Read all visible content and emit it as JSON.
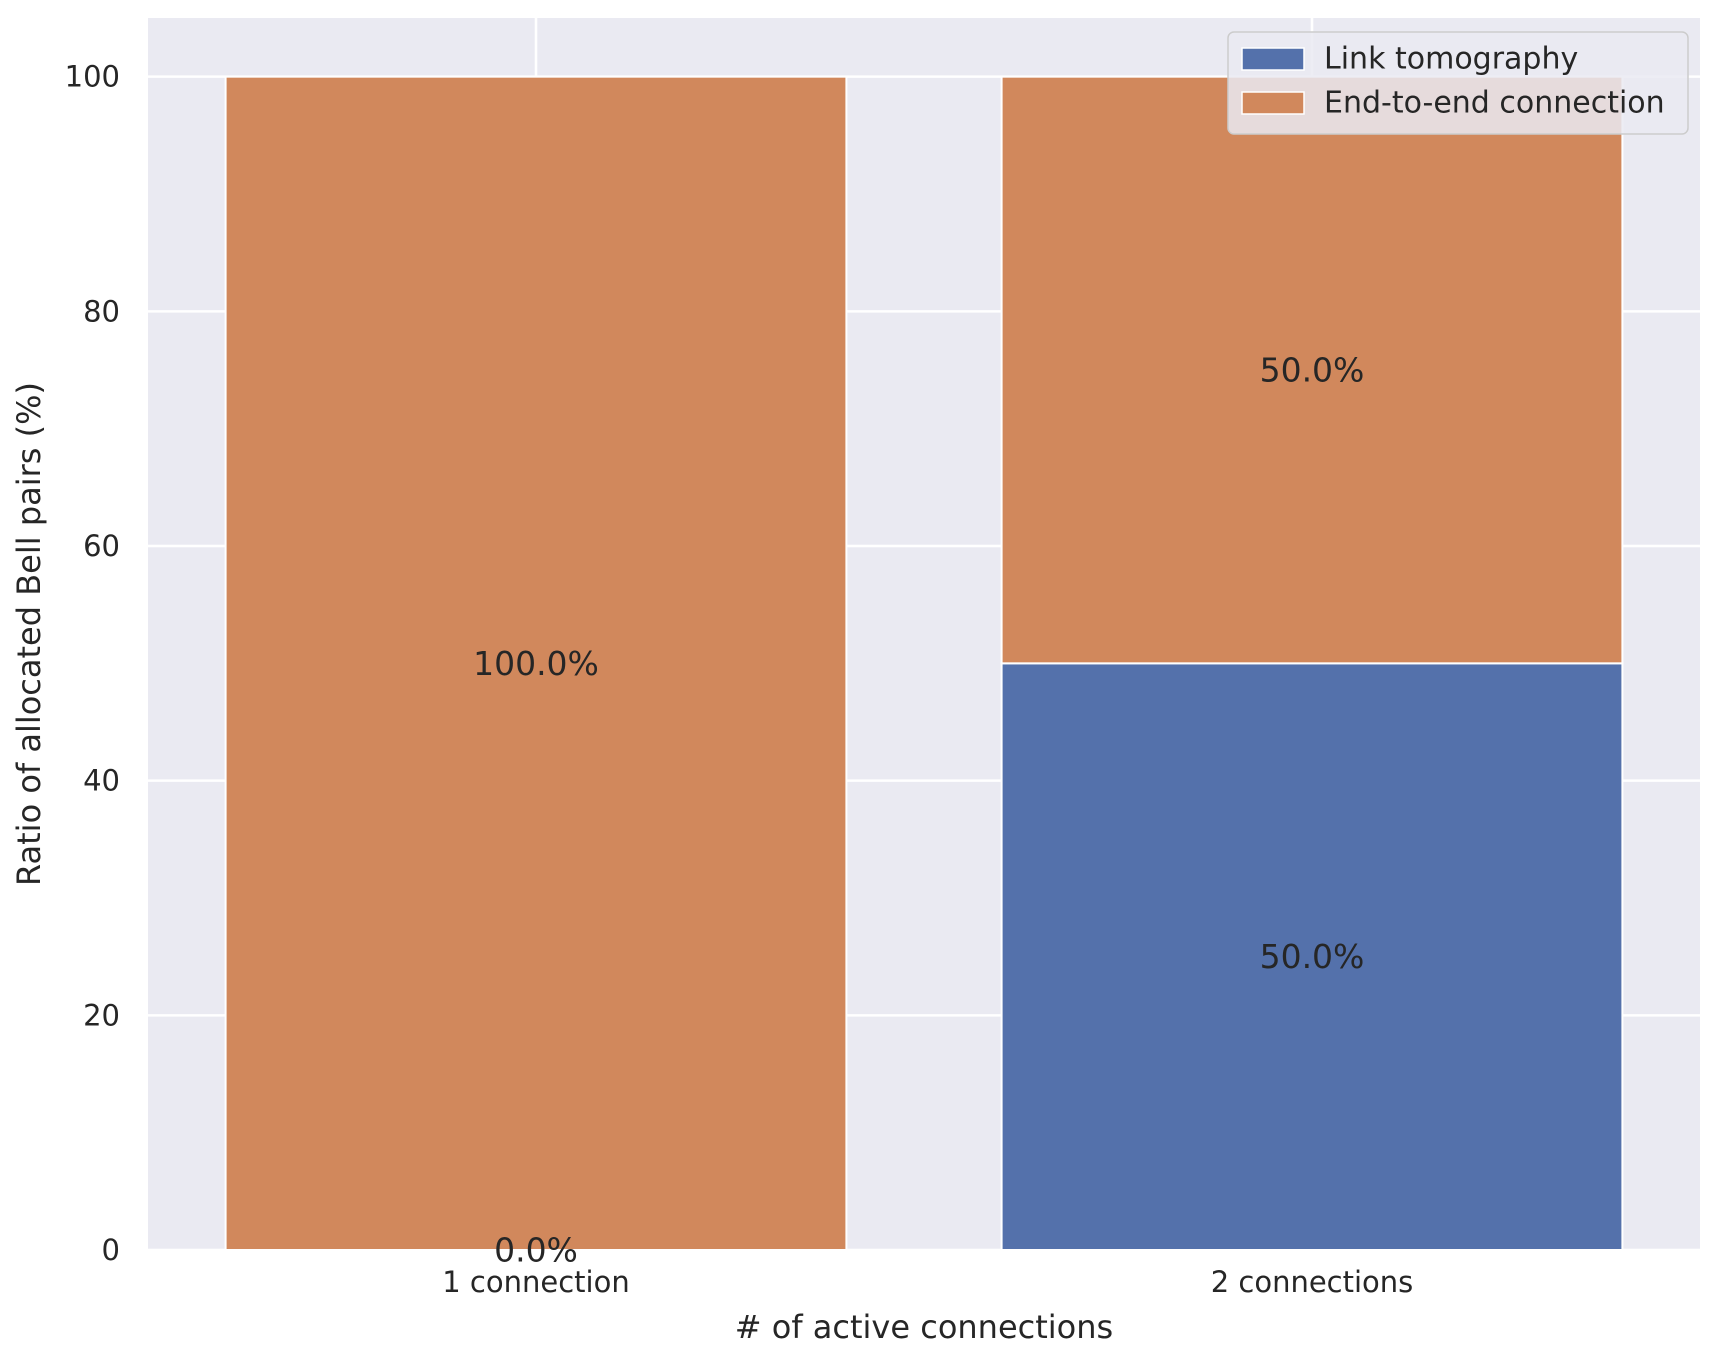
{
  "chart_data": {
    "type": "bar",
    "stacked": true,
    "categories": [
      "1 connection",
      "2 connections"
    ],
    "series": [
      {
        "name": "Link tomography",
        "values": [
          0.0,
          50.0
        ],
        "color": "#5471ab",
        "labels": [
          "0.0%",
          "50.0%"
        ]
      },
      {
        "name": "End-to-end connection",
        "values": [
          100.0,
          50.0
        ],
        "color": "#d1885c",
        "labels": [
          "100.0%",
          "50.0%"
        ]
      }
    ],
    "xlabel": "# of active connections",
    "ylabel": "Ratio of allocated Bell pairs (%)",
    "ylim": [
      0,
      105
    ],
    "yticks": [
      0,
      20,
      40,
      60,
      80,
      100
    ],
    "grid": true,
    "legend_position": "top-right",
    "background_color": "#eaeaf2",
    "grid_color": "#ffffff"
  }
}
